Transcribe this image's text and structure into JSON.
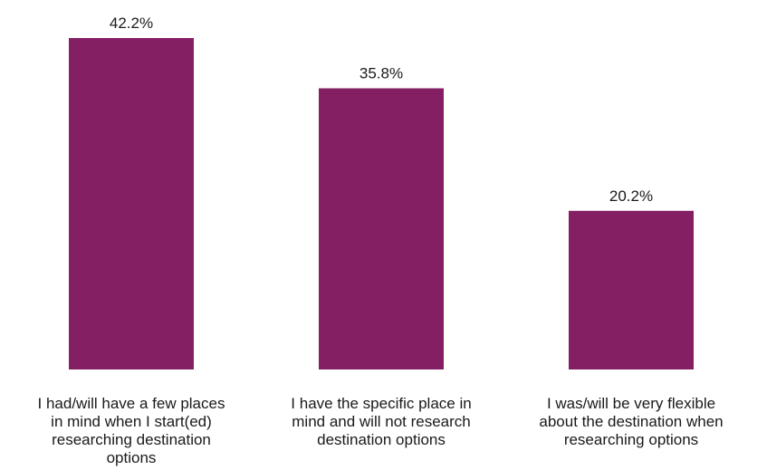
{
  "chart_data": {
    "type": "bar",
    "categories": [
      "I had/will have a few places in mind when I start(ed) researching destination options",
      "I have the specific place in mind and will not research destination options",
      "I was/will be very flexible about the destination when researching options"
    ],
    "category_lines": [
      [
        "I had/will have a few places",
        "in mind when I start(ed)",
        "researching destination",
        "options"
      ],
      [
        "I have the specific place in",
        "mind and will not research",
        "destination options"
      ],
      [
        "I was/will be very flexible",
        "about the destination when",
        "researching options"
      ]
    ],
    "values": [
      42.2,
      35.8,
      20.2
    ],
    "data_labels": [
      "42.2%",
      "35.8%",
      "20.2%"
    ],
    "unit": "%",
    "title": "",
    "xlabel": "",
    "ylabel": "",
    "ylim": [
      0,
      42.2
    ],
    "grid": false,
    "legend": "none",
    "bar_color": "#841F64"
  }
}
